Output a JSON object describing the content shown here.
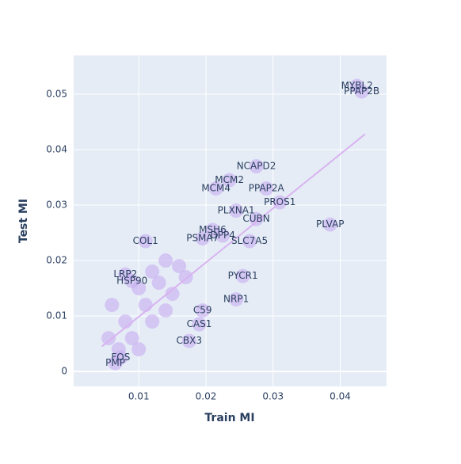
{
  "chart_data": {
    "type": "scatter",
    "x_label": "Train MI",
    "y_label": "Test MI",
    "xlim": [
      0.0003,
      0.0469
    ],
    "ylim": [
      -0.0027,
      0.057
    ],
    "xticks": [
      0.01,
      0.02,
      0.03,
      0.04
    ],
    "yticks": [
      0,
      0.01,
      0.02,
      0.03,
      0.04,
      0.05
    ],
    "grid": true,
    "color": "#c7aef0",
    "line_color": "#d9b3f0",
    "x": [
      0.0425,
      0.0432,
      0.0275,
      0.0235,
      0.0215,
      0.029,
      0.031,
      0.0245,
      0.0275,
      0.0385,
      0.021,
      0.0195,
      0.0225,
      0.0265,
      0.011,
      0.008,
      0.009,
      0.0255,
      0.0245,
      0.0195,
      0.0175,
      0.019,
      0.0073,
      0.0065,
      0.006,
      0.008,
      0.01,
      0.012,
      0.014,
      0.011,
      0.013,
      0.015,
      0.009,
      0.016,
      0.012,
      0.007,
      0.01,
      0.014,
      0.017,
      0.0055
    ],
    "y": [
      0.0515,
      0.0505,
      0.037,
      0.0345,
      0.033,
      0.033,
      0.0305,
      0.029,
      0.0275,
      0.0265,
      0.0255,
      0.024,
      0.0245,
      0.0235,
      0.0235,
      0.0175,
      0.0163,
      0.0172,
      0.013,
      0.011,
      0.0055,
      0.0085,
      0.0025,
      0.0015,
      0.012,
      0.009,
      0.015,
      0.018,
      0.02,
      0.012,
      0.016,
      0.014,
      0.006,
      0.019,
      0.009,
      0.004,
      0.004,
      0.011,
      0.017,
      0.006
    ],
    "labels": [
      "MYBL2",
      "PPAP2B",
      "NCAPD2",
      "MCM2",
      "MCM4",
      "PPAP2A",
      "PROS1",
      "PLXNA1",
      "CUBN",
      "PLVAP",
      "MSH6",
      "PSMA7",
      "DPP4",
      "SLC7A5",
      "COL1",
      "LRP2",
      "HSP90",
      "PYCR1",
      "NRP1",
      "C59",
      "CBX3",
      "CAS1",
      "FOS",
      "PMP",
      null,
      null,
      null,
      null,
      null,
      null,
      null,
      null,
      null,
      null,
      null,
      null,
      null,
      null,
      null,
      null
    ],
    "trend": {
      "x": [
        0.0045,
        0.0437
      ],
      "y": [
        0.0045,
        0.0428
      ]
    }
  }
}
